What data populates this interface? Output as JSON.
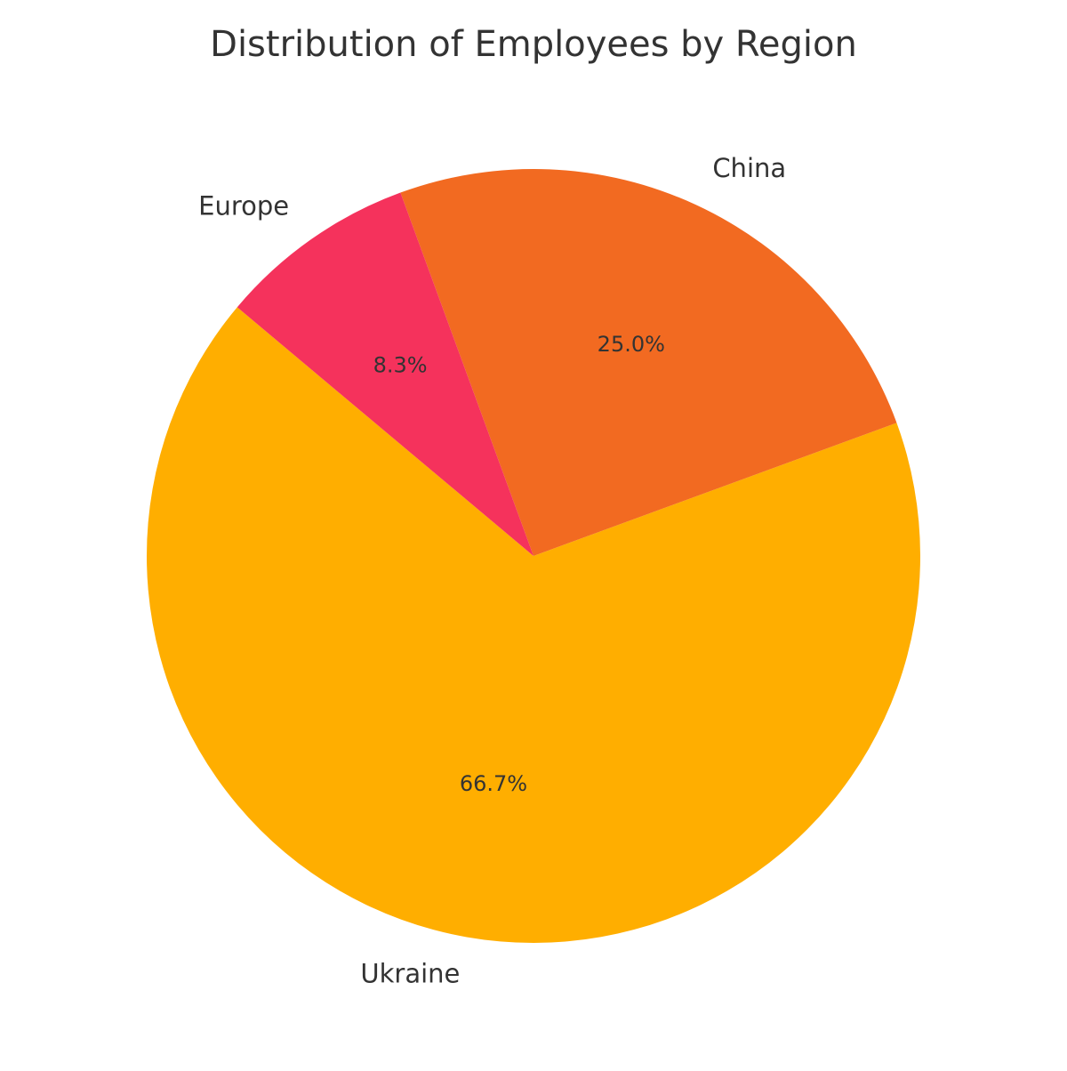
{
  "chart_data": {
    "type": "pie",
    "title": "Distribution of Employees by Region",
    "categories": [
      "Ukraine",
      "China",
      "Europe"
    ],
    "values": [
      66.7,
      25.0,
      8.3
    ],
    "percent_labels": [
      "66.7%",
      "25.0%",
      "8.3%"
    ],
    "colors": [
      "#FFAE00",
      "#F26A21",
      "#F5325C"
    ],
    "legend": "none"
  }
}
